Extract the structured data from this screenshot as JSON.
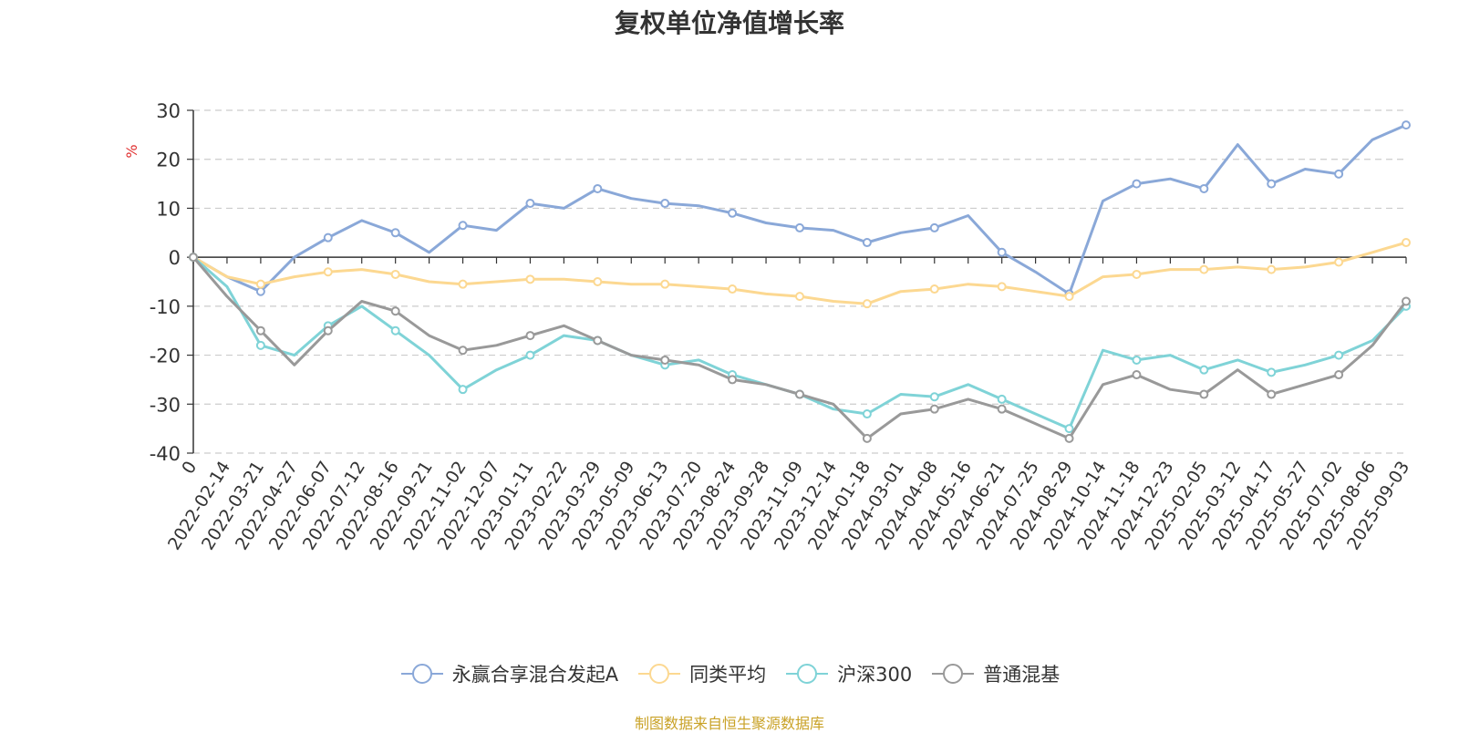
{
  "chart_data": {
    "type": "line",
    "title": "复权单位净值增长率",
    "ylabel": "%",
    "ylim": [
      -40,
      30
    ],
    "y_ticks": [
      30,
      20,
      10,
      0,
      -10,
      -20,
      -30,
      -40
    ],
    "grid": true,
    "legend_position": "bottom",
    "x_ticks": [
      "0",
      "2022-02-14",
      "2022-03-21",
      "2022-04-27",
      "2022-06-07",
      "2022-07-12",
      "2022-08-16",
      "2022-09-21",
      "2022-11-02",
      "2022-12-07",
      "2023-01-11",
      "2023-02-22",
      "2023-03-29",
      "2023-05-09",
      "2023-06-13",
      "2023-07-20",
      "2023-08-24",
      "2023-09-28",
      "2023-11-09",
      "2023-12-14",
      "2024-01-18",
      "2024-03-01",
      "2024-04-08",
      "2024-05-16",
      "2024-06-21",
      "2024-07-25",
      "2024-08-29",
      "2024-10-14",
      "2024-11-18",
      "2024-12-23",
      "2025-02-05",
      "2025-03-12",
      "2025-04-17",
      "2025-05-27",
      "2025-07-02",
      "2025-08-06",
      "2025-09-03"
    ],
    "series": [
      {
        "name": "永赢合享混合发起A",
        "color": "#8aa8d8",
        "values": [
          0,
          -4,
          -7,
          0,
          4,
          7.5,
          5,
          1,
          6.5,
          5.5,
          11,
          10,
          14,
          12,
          11,
          10.5,
          9,
          7,
          6,
          5.5,
          3,
          5,
          6,
          8.5,
          1,
          -3,
          -7.5,
          11.5,
          15,
          16,
          14,
          23,
          15,
          18,
          17,
          24,
          27
        ]
      },
      {
        "name": "同类平均",
        "color": "#fcd891",
        "values": [
          0,
          -4,
          -5.5,
          -4,
          -3,
          -2.5,
          -3.5,
          -5,
          -5.5,
          -5,
          -4.5,
          -4.5,
          -5,
          -5.5,
          -5.5,
          -6,
          -6.5,
          -7.5,
          -8,
          -9,
          -9.5,
          -7,
          -6.5,
          -5.5,
          -6,
          -7,
          -8,
          -4,
          -3.5,
          -2.5,
          -2.5,
          -2,
          -2.5,
          -2,
          -1,
          1,
          3
        ]
      },
      {
        "name": "沪深300",
        "color": "#7fd3d7",
        "values": [
          0,
          -6,
          -18,
          -20,
          -14,
          -10,
          -15,
          -20,
          -27,
          -23,
          -20,
          -16,
          -17,
          -20,
          -22,
          -21,
          -24,
          -26,
          -28,
          -31,
          -32,
          -28,
          -28.5,
          -26,
          -29,
          -32,
          -35,
          -19,
          -21,
          -20,
          -23,
          -21,
          -23.5,
          -22,
          -20,
          -17,
          -10
        ]
      },
      {
        "name": "普通混基",
        "color": "#999999",
        "values": [
          0,
          -8,
          -15,
          -22,
          -15,
          -9,
          -11,
          -16,
          -19,
          -18,
          -16,
          -14,
          -17,
          -20,
          -21,
          -22,
          -25,
          -26,
          -28,
          -30,
          -37,
          -32,
          -31,
          -29,
          -31,
          -34,
          -37,
          -26,
          -24,
          -27,
          -28,
          -23,
          -28,
          -26,
          -24,
          -18,
          -9
        ]
      }
    ]
  },
  "source_text": "制图数据来自恒生聚源数据库"
}
